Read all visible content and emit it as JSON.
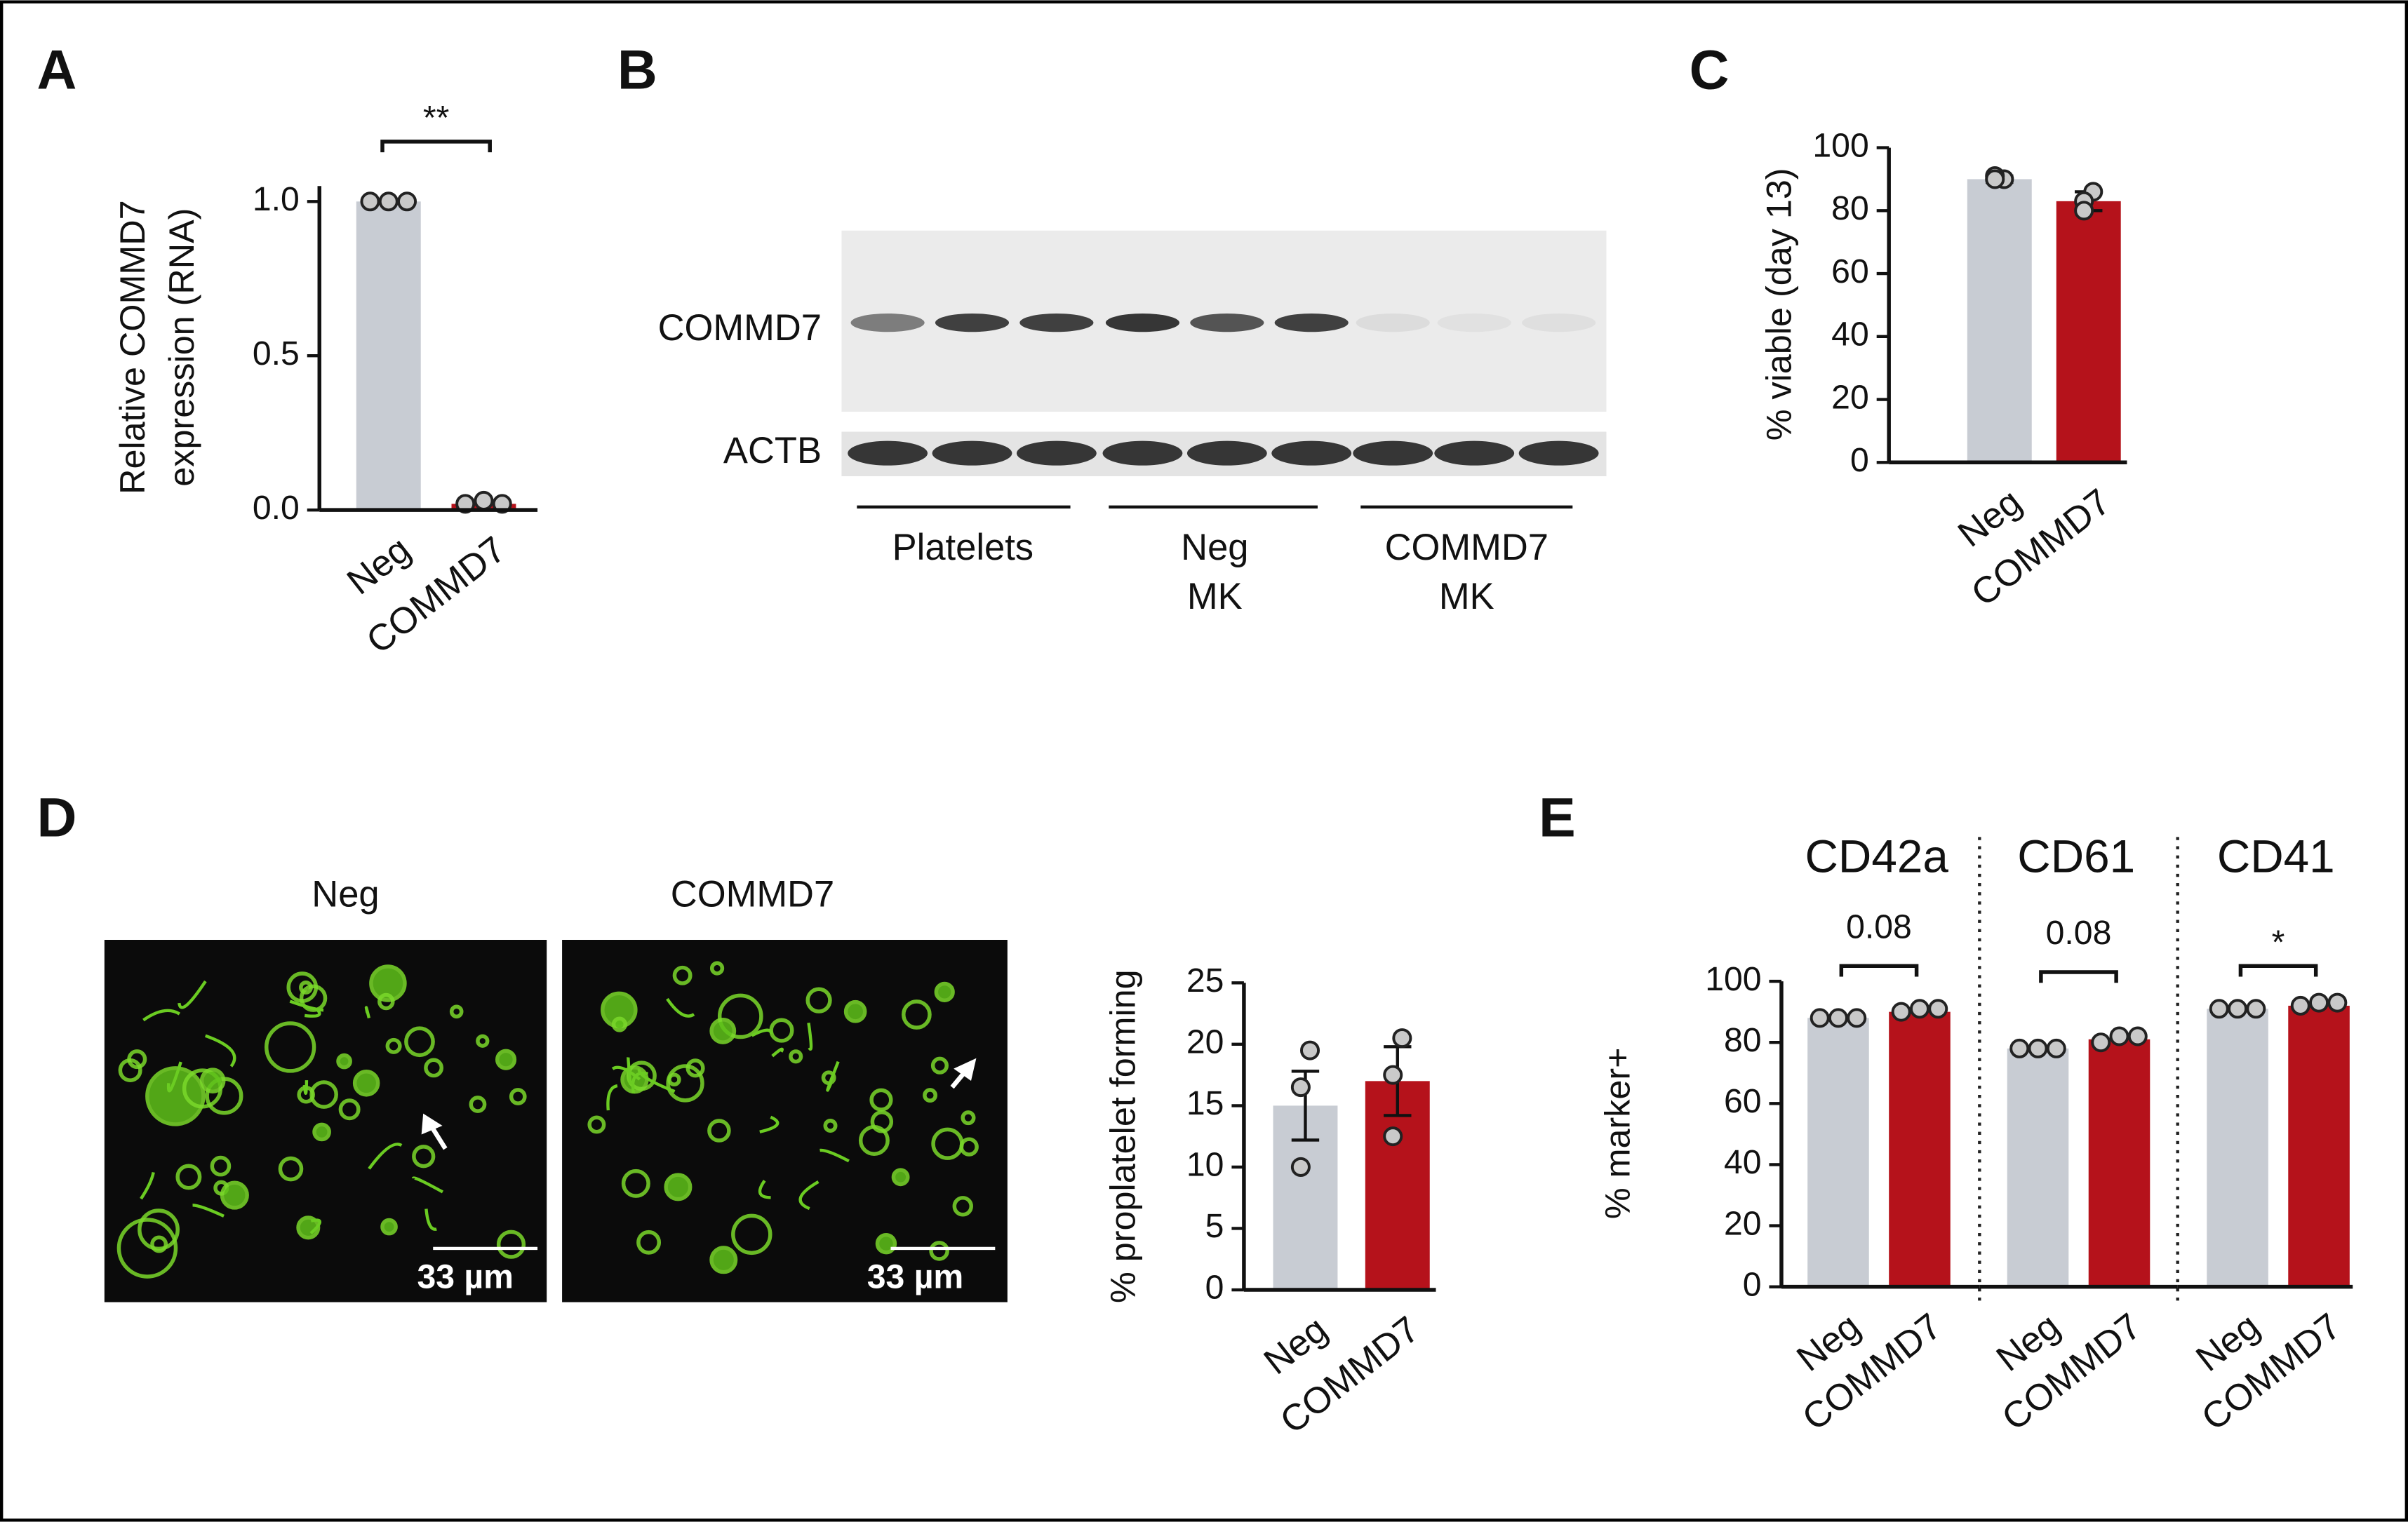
{
  "panel_labels": [
    "A",
    "B",
    "C",
    "D",
    "E"
  ],
  "blot": {
    "rows": [
      "COMMD7",
      "ACTB"
    ],
    "groups": [
      [
        "Platelets"
      ],
      [
        "Neg",
        "MK"
      ],
      [
        "COMMD7",
        "MK"
      ]
    ]
  },
  "micrographs": [
    {
      "label": "Neg",
      "scale_bar": "33 µm"
    },
    {
      "label": "COMMD7",
      "scale_bar": "33 µm"
    }
  ],
  "chart_data": [
    {
      "type": "bar",
      "ylabel": [
        "Relative COMMD7",
        "expression (RNA)"
      ],
      "categories": [
        "Neg",
        "COMMD7"
      ],
      "values": [
        1.0,
        0.02
      ],
      "colors": [
        "#c8ccd3",
        "#b5121b"
      ],
      "points": [
        [
          1.0,
          1.0,
          1.0
        ],
        [
          0.02,
          0.03,
          0.02
        ]
      ],
      "significance": "**",
      "ylim": [
        0,
        1.05
      ],
      "yticks": [
        {
          "value": 0,
          "label": "0.0"
        },
        {
          "value": 0.5,
          "label": "0.5"
        },
        {
          "value": 1,
          "label": "1.0"
        }
      ]
    },
    {
      "type": "bar",
      "ylabel": "% viable (day 13)",
      "categories": [
        "Neg",
        "COMMD7"
      ],
      "values": [
        90,
        83
      ],
      "errors": [
        1,
        3
      ],
      "colors": [
        "#c8ccd3",
        "#b5121b"
      ],
      "points": [
        [
          90,
          91,
          90
        ],
        [
          86,
          83,
          80
        ]
      ],
      "ylim": [
        0,
        100
      ],
      "yticks": [
        0,
        20,
        40,
        60,
        80,
        100
      ]
    },
    {
      "type": "bar",
      "ylabel": "% proplatelet forming",
      "categories": [
        "Neg",
        "COMMD7"
      ],
      "values": [
        15,
        17
      ],
      "errors": [
        2.8,
        2.8
      ],
      "colors": [
        "#c8ccd3",
        "#b5121b"
      ],
      "points": [
        [
          19.5,
          16.5,
          10
        ],
        [
          20.5,
          17.5,
          12.5
        ]
      ],
      "ylim": [
        0,
        25
      ],
      "yticks": [
        0,
        5,
        10,
        15,
        20,
        25
      ]
    },
    {
      "type": "bar",
      "title": "CD42a",
      "ylabel": "% marker+",
      "categories": [
        "Neg",
        "COMMD7"
      ],
      "values": [
        88,
        90
      ],
      "colors": [
        "#c8ccd3",
        "#b5121b"
      ],
      "points": [
        [
          88,
          88,
          88
        ],
        [
          90,
          91,
          91
        ]
      ],
      "significance": "0.08",
      "ylim": [
        0,
        100
      ],
      "yticks": [
        0,
        20,
        40,
        60,
        80,
        100
      ]
    },
    {
      "type": "bar",
      "title": "CD61",
      "categories": [
        "Neg",
        "COMMD7"
      ],
      "values": [
        78,
        81
      ],
      "colors": [
        "#c8ccd3",
        "#b5121b"
      ],
      "points": [
        [
          78,
          78,
          78
        ],
        [
          80,
          82,
          82
        ]
      ],
      "significance": "0.08",
      "ylim": [
        0,
        100
      ]
    },
    {
      "type": "bar",
      "title": "CD41",
      "categories": [
        "Neg",
        "COMMD7"
      ],
      "values": [
        91,
        92
      ],
      "colors": [
        "#c8ccd3",
        "#b5121b"
      ],
      "points": [
        [
          91,
          91,
          91
        ],
        [
          92,
          93,
          93
        ]
      ],
      "significance": "*",
      "ylim": [
        0,
        100
      ]
    }
  ]
}
